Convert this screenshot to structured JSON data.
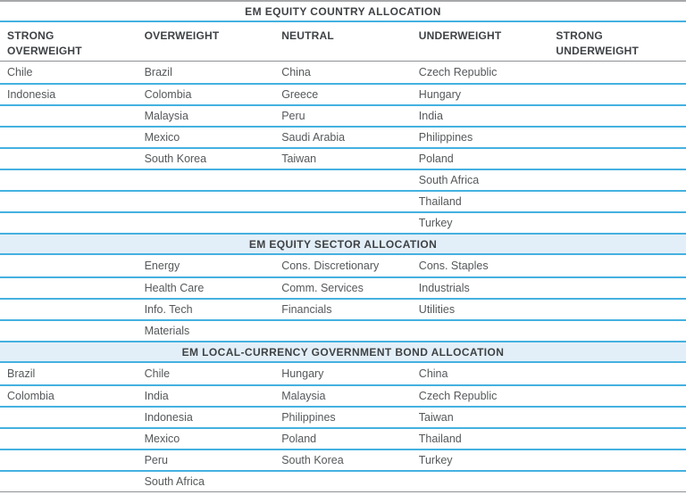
{
  "columns": [
    "STRONG OVERWEIGHT",
    "OVERWEIGHT",
    "NEUTRAL",
    "UNDERWEIGHT",
    "STRONG UNDERWEIGHT"
  ],
  "sections": [
    {
      "title": "EM EQUITY COUNTRY ALLOCATION",
      "rows": [
        [
          "Chile",
          "Brazil",
          "China",
          "Czech Republic",
          ""
        ],
        [
          "Indonesia",
          "Colombia",
          "Greece",
          "Hungary",
          ""
        ],
        [
          "",
          "Malaysia",
          "Peru",
          "India",
          ""
        ],
        [
          "",
          "Mexico",
          "Saudi Arabia",
          "Philippines",
          ""
        ],
        [
          "",
          "South Korea",
          "Taiwan",
          "Poland",
          ""
        ],
        [
          "",
          "",
          "",
          "South Africa",
          ""
        ],
        [
          "",
          "",
          "",
          "Thailand",
          ""
        ],
        [
          "",
          "",
          "",
          "Turkey",
          ""
        ]
      ]
    },
    {
      "title": "EM EQUITY SECTOR ALLOCATION",
      "rows": [
        [
          "",
          "Energy",
          "Cons. Discretionary",
          "Cons. Staples",
          ""
        ],
        [
          "",
          "Health Care",
          "Comm. Services",
          "Industrials",
          ""
        ],
        [
          "",
          "Info. Tech",
          "Financials",
          "Utilities",
          ""
        ],
        [
          "",
          "Materials",
          "",
          "",
          ""
        ]
      ]
    },
    {
      "title": "EM LOCAL-CURRENCY GOVERNMENT BOND ALLOCATION",
      "rows": [
        [
          "Brazil",
          "Chile",
          "Hungary",
          "China",
          ""
        ],
        [
          "Colombia",
          "India",
          "Malaysia",
          "Czech Republic",
          ""
        ],
        [
          "",
          "Indonesia",
          "Philippines",
          "Taiwan",
          ""
        ],
        [
          "",
          "Mexico",
          "Poland",
          "Thailand",
          ""
        ],
        [
          "",
          "Peru",
          "South Korea",
          "Turkey",
          ""
        ],
        [
          "",
          "South Africa",
          "",
          "",
          ""
        ]
      ]
    }
  ],
  "colors": {
    "accent_line": "#44b1e0",
    "section_header_bg": "#e3eff8",
    "gray_line": "#8d9093",
    "top_line": "#a6a8aa",
    "heading_text": "#3e4245",
    "cell_text": "#55585a"
  }
}
